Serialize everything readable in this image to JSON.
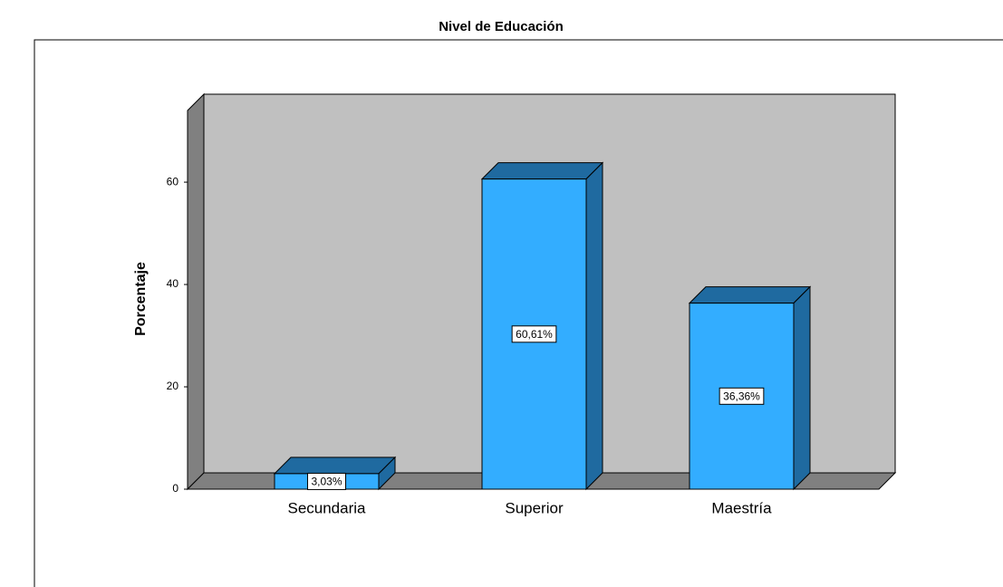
{
  "chart_data": {
    "type": "bar3d",
    "title": "Nivel de Educación",
    "y_label": "Porcentaje",
    "categories": [
      "Secundaria",
      "Superior",
      "Maestría"
    ],
    "values": [
      3.03,
      60.61,
      36.36
    ],
    "value_labels": [
      "3,03%",
      "60,61%",
      "36,36%"
    ],
    "color": "#33adff",
    "ylim": [
      0,
      74
    ],
    "yticks": [
      0,
      20,
      40,
      60
    ],
    "grid": false
  }
}
